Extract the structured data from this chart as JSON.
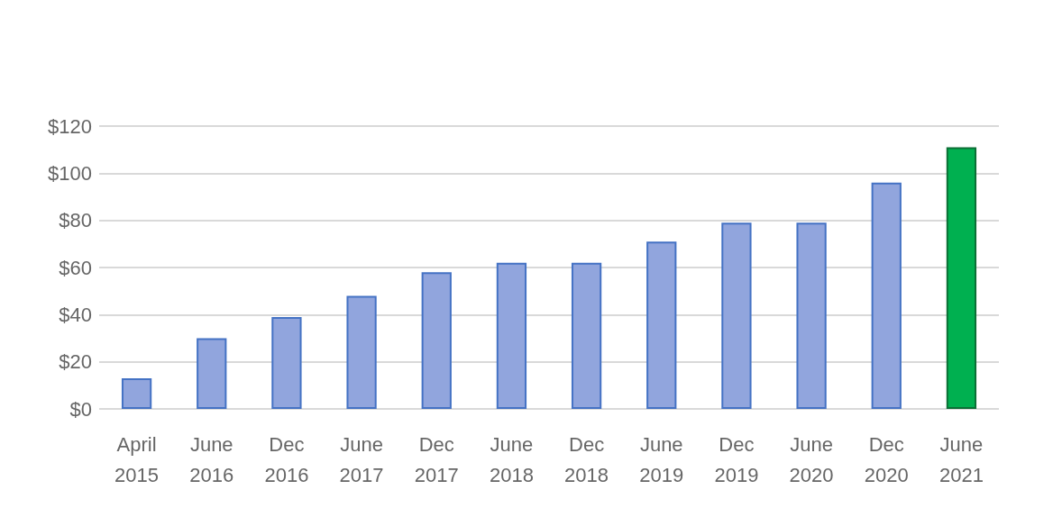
{
  "chart_data": {
    "type": "bar",
    "categories": [
      "April 2015",
      "June 2016",
      "Dec 2016",
      "June 2017",
      "Dec 2017",
      "June 2018",
      "Dec 2018",
      "June 2019",
      "Dec 2019",
      "June 2020",
      "Dec 2020",
      "June 2021"
    ],
    "values": [
      13,
      30,
      39,
      48,
      58,
      62,
      62,
      71,
      79,
      79,
      96,
      111
    ],
    "colors": [
      "#91a5dd",
      "#91a5dd",
      "#91a5dd",
      "#91a5dd",
      "#91a5dd",
      "#91a5dd",
      "#91a5dd",
      "#91a5dd",
      "#91a5dd",
      "#91a5dd",
      "#91a5dd",
      "#00b050"
    ],
    "ylim": [
      0,
      120
    ],
    "yticks": [
      {
        "value": 0,
        "label": "$0"
      },
      {
        "value": 20,
        "label": "$20"
      },
      {
        "value": 40,
        "label": "$40"
      },
      {
        "value": 60,
        "label": "$60"
      },
      {
        "value": 80,
        "label": "$80"
      },
      {
        "value": 100,
        "label": "$100"
      },
      {
        "value": 120,
        "label": "$120"
      }
    ],
    "grid": "y"
  }
}
